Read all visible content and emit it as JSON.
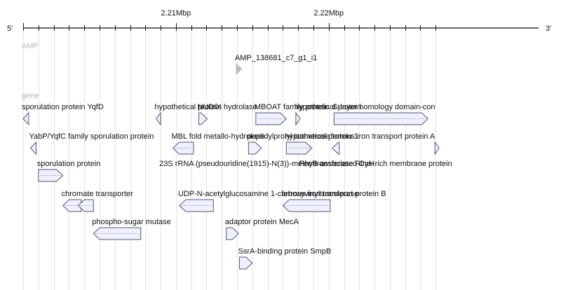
{
  "ruler": {
    "left_end": "5'",
    "right_end": "3'",
    "major_ticks": [
      {
        "label": "2.21Mbp",
        "pos_bp": 2210000
      },
      {
        "label": "2.22Mbp",
        "pos_bp": 2220000
      }
    ]
  },
  "tracks": {
    "amp": {
      "label": "AMP",
      "features": [
        {
          "name": "AMP_138681_c7_g1_i1",
          "start": 2213950,
          "end": 2214300,
          "strand": "+",
          "row": 0
        }
      ]
    },
    "gene": {
      "label": "gene",
      "features": [
        {
          "name": "sporulation protein YqfD",
          "start": 2200000,
          "end": 2200360,
          "strand": "-",
          "row": 0
        },
        {
          "name": "hypothetical protein",
          "start": 2208700,
          "end": 2209000,
          "strand": "-",
          "row": 0
        },
        {
          "name": "NUDIX hydrolase",
          "start": 2211500,
          "end": 2212050,
          "strand": "+",
          "row": 0
        },
        {
          "name": "MBOAT family protein",
          "start": 2215230,
          "end": 2217230,
          "strand": "+",
          "row": 0
        },
        {
          "name": "hypothetical protein 2",
          "start": 2217850,
          "end": 2218100,
          "strand": "+",
          "row": 0
        },
        {
          "name": "S-layer homology domain-con",
          "start": 2220350,
          "end": 2226500,
          "strand": "+",
          "row": 0
        },
        {
          "name": "YabP/YqfC family sporulation protein",
          "start": 2200480,
          "end": 2200850,
          "strand": "-",
          "row": 1
        },
        {
          "name": "MBL fold metallo-hydrolase",
          "start": 2209800,
          "end": 2211150,
          "strand": "-",
          "row": 1
        },
        {
          "name": "peptidylprolyl isomerase",
          "start": 2214750,
          "end": 2215600,
          "strand": "+",
          "row": 1
        },
        {
          "name": "hypothetical protein 1",
          "start": 2217230,
          "end": 2218900,
          "strand": "+",
          "row": 1
        },
        {
          "name": "ferrous iron transport protein A",
          "start": 2220230,
          "end": 2220690,
          "strand": "-",
          "row": 1
        },
        {
          "name": "",
          "start": 2226950,
          "end": 2227100,
          "strand": "+",
          "row": 1
        },
        {
          "name": "sporulation protein",
          "start": 2201000,
          "end": 2202600,
          "strand": "+",
          "row": 2
        },
        {
          "name": "23S rRNA (pseudouridine(1915)-N(3))-methyltransferase RlmH",
          "start": 2209000,
          "end": 2209000,
          "strand": "+",
          "row": 2,
          "label_only": true
        },
        {
          "name": "FeoB-associated Cys-rich membrane protein",
          "start": 2218150,
          "end": 2218150,
          "strand": "+",
          "row": 2,
          "label_only": true
        },
        {
          "name": "chromate transporter",
          "start": 2202600,
          "end": 2203800,
          "strand": "-",
          "row": 3
        },
        {
          "name": "",
          "start": 2203600,
          "end": 2204600,
          "strand": "-",
          "row": 3
        },
        {
          "name": "UDP-N-acetylglucosamine 1-carboxyvinyltransferase",
          "start": 2210230,
          "end": 2212450,
          "strand": "-",
          "row": 3
        },
        {
          "name": "ferrous iron transport protein B",
          "start": 2217000,
          "end": 2220100,
          "strand": "-",
          "row": 3
        },
        {
          "name": "phospho-sugar mutase",
          "start": 2204600,
          "end": 2207700,
          "strand": "-",
          "row": 4
        },
        {
          "name": "adaptor protein MecA",
          "start": 2213300,
          "end": 2214100,
          "strand": "+",
          "row": 4
        },
        {
          "name": "SsrA-binding protein SmpB",
          "start": 2214160,
          "end": 2215000,
          "strand": "+",
          "row": 5
        }
      ]
    }
  },
  "colors": {
    "feature_fill": "#eef0fb",
    "feature_stroke": "#55557a",
    "amp_fill": "#bdbdbd",
    "grid": "#e3e3e3",
    "text": "#111111",
    "track_label": "#b7b7b7"
  }
}
